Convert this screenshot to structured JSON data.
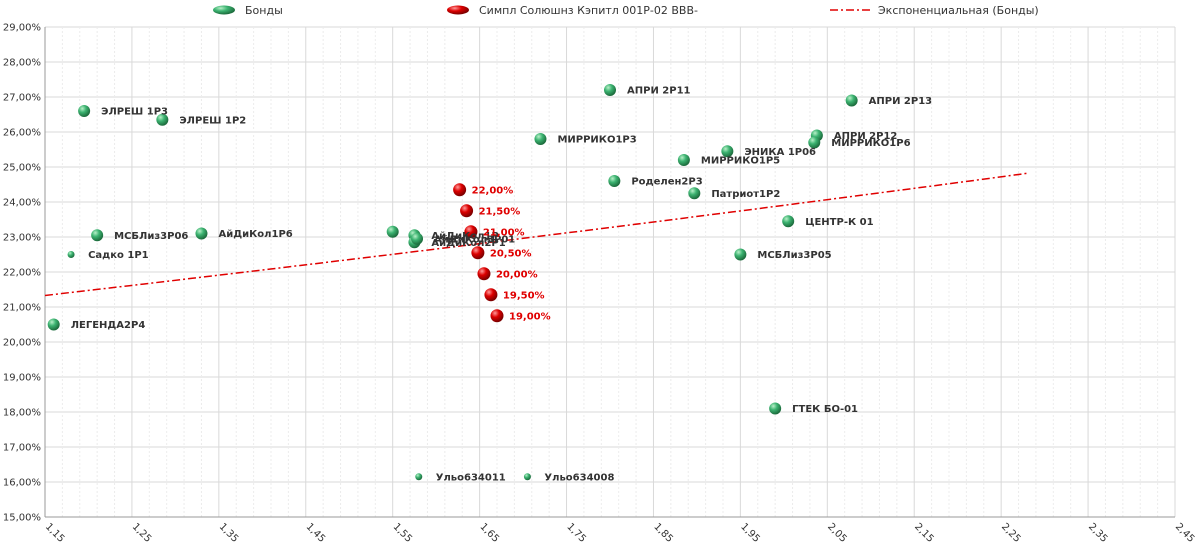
{
  "chart_data": {
    "type": "scatter",
    "title": "",
    "xlabel": "",
    "ylabel": "",
    "xlim": [
      1.15,
      2.45
    ],
    "ylim": [
      15,
      29
    ],
    "x_ticks": [
      "1,15",
      "1,25",
      "1,35",
      "1,45",
      "1,55",
      "1,65",
      "1,75",
      "1,85",
      "1,95",
      "2,05",
      "2,15",
      "2,25",
      "2,35",
      "2,45"
    ],
    "y_ticks": [
      "15,00%",
      "16,00%",
      "17,00%",
      "18,00%",
      "19,00%",
      "20,00%",
      "21,00%",
      "22,00%",
      "23,00%",
      "24,00%",
      "25,00%",
      "26,00%",
      "27,00%",
      "28,00%",
      "29,00%"
    ],
    "grid": true,
    "legend_position": "top",
    "legend": [
      {
        "label": "Бонды",
        "kind": "marker",
        "color": "#3cb371"
      },
      {
        "label": "Симпл Солюшнз Кэпитл 001Р-02 BBB-",
        "kind": "marker",
        "color": "#dd0000"
      },
      {
        "label": "Экспоненциальная (Бонды)",
        "kind": "line",
        "color": "#e00000"
      }
    ],
    "series": [
      {
        "name": "Бонды",
        "color": "#3cb371",
        "points": [
          {
            "x": 1.16,
            "y": 20.5,
            "label": "ЛЕГЕНДА2Р4",
            "size": "large"
          },
          {
            "x": 1.18,
            "y": 22.5,
            "label": "Садко 1Р1",
            "size": "small"
          },
          {
            "x": 1.195,
            "y": 26.6,
            "label": "ЭЛРЕШ 1Р3",
            "size": "large"
          },
          {
            "x": 1.21,
            "y": 23.05,
            "label": "МСБЛиз3Р06",
            "size": "large"
          },
          {
            "x": 1.285,
            "y": 26.35,
            "label": "ЭЛРЕШ 1Р2",
            "size": "large"
          },
          {
            "x": 1.33,
            "y": 23.1,
            "label": "АйДиКол1Р6",
            "size": "large"
          },
          {
            "x": 1.55,
            "y": 23.15,
            "label": "",
            "size": "large"
          },
          {
            "x": 1.575,
            "y": 23.05,
            "label": "АйДиКол1Р",
            "size": "large"
          },
          {
            "x": 1.575,
            "y": 22.85,
            "label": "АйДиКол2Р1",
            "size": "large"
          },
          {
            "x": 1.578,
            "y": 22.95,
            "label": "АйДиКол3Р01",
            "size": "large"
          },
          {
            "x": 1.58,
            "y": 16.15,
            "label": "Ульо634011",
            "size": "small"
          },
          {
            "x": 1.705,
            "y": 16.15,
            "label": "Ульо634008",
            "size": "small"
          },
          {
            "x": 1.72,
            "y": 25.8,
            "label": "МИРРИКО1Р3",
            "size": "large"
          },
          {
            "x": 1.8,
            "y": 27.2,
            "label": "АПРИ 2Р11",
            "size": "large"
          },
          {
            "x": 1.805,
            "y": 24.6,
            "label": "Роделен2Р3",
            "size": "large"
          },
          {
            "x": 1.885,
            "y": 25.2,
            "label": "МИРРИКО1Р5",
            "size": "large"
          },
          {
            "x": 1.897,
            "y": 24.25,
            "label": "Патриот1Р2",
            "size": "large"
          },
          {
            "x": 1.935,
            "y": 25.45,
            "label": "ЭНИКА 1Р06",
            "size": "large"
          },
          {
            "x": 1.95,
            "y": 22.5,
            "label": "МСБЛиз3Р05",
            "size": "large"
          },
          {
            "x": 1.99,
            "y": 18.1,
            "label": "ГТЕК БО-01",
            "size": "large"
          },
          {
            "x": 2.005,
            "y": 23.45,
            "label": "ЦЕНТР-К 01",
            "size": "large"
          },
          {
            "x": 2.038,
            "y": 25.9,
            "label": "АПРИ 2Р12",
            "size": "large"
          },
          {
            "x": 2.035,
            "y": 25.7,
            "label": "МИРРИКО1Р6",
            "size": "large"
          },
          {
            "x": 2.078,
            "y": 26.9,
            "label": "АПРИ 2Р13",
            "size": "large"
          }
        ]
      },
      {
        "name": "Симпл Солюшнз Кэпитл 001Р-02 BBB-",
        "color": "#dd0000",
        "points": [
          {
            "x": 1.627,
            "y": 24.35,
            "label": "22,00%"
          },
          {
            "x": 1.635,
            "y": 23.75,
            "label": "21,50%"
          },
          {
            "x": 1.64,
            "y": 23.15,
            "label": "21,00%"
          },
          {
            "x": 1.648,
            "y": 22.55,
            "label": "20,50%"
          },
          {
            "x": 1.655,
            "y": 21.95,
            "label": "20,00%"
          },
          {
            "x": 1.663,
            "y": 21.35,
            "label": "19,50%"
          },
          {
            "x": 1.67,
            "y": 20.75,
            "label": "19,00%"
          }
        ]
      }
    ],
    "trendline": {
      "name": "Экспоненциальная (Бонды)",
      "type": "exponential",
      "color": "#e00000",
      "x": [
        1.15,
        2.28
      ],
      "y": [
        21.33,
        24.82
      ]
    }
  }
}
